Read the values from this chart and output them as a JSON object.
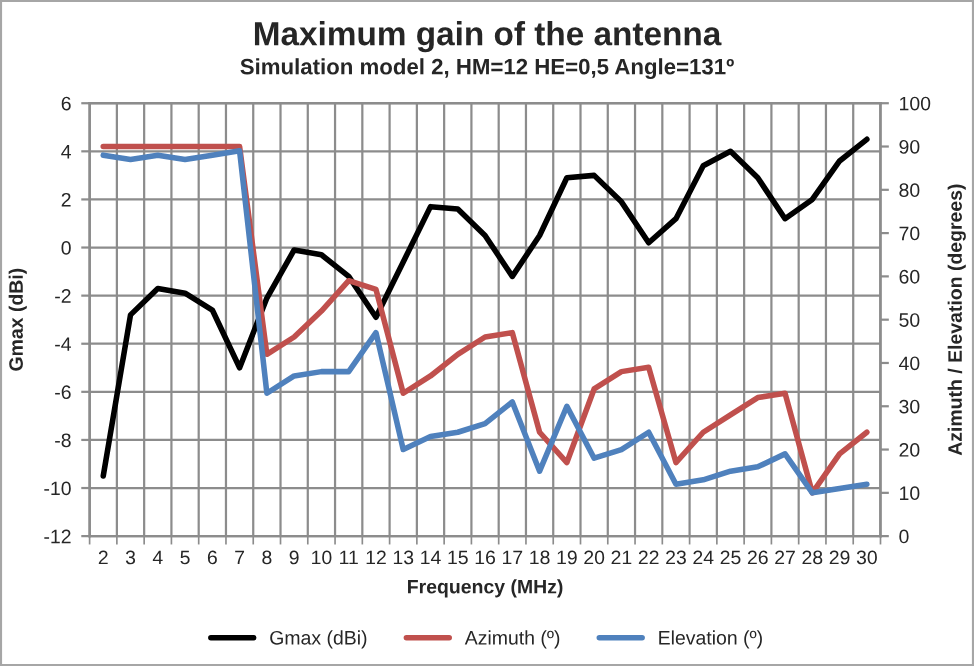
{
  "chart_data": {
    "type": "line",
    "title": "Maximum gain of the antenna",
    "subtitle": "Simulation model 2, HM=12 HE=0,5 Angle=131º",
    "xlabel": "Frequency (MHz)",
    "ylabel": "Gmax (dBi)",
    "y2label": "Azimuth / Elevation (degrees)",
    "categories": [
      "2",
      "3",
      "4",
      "5",
      "6",
      "7",
      "8",
      "9",
      "10",
      "11",
      "12",
      "13",
      "14",
      "15",
      "16",
      "17",
      "18",
      "19",
      "20",
      "21",
      "22",
      "23",
      "24",
      "25",
      "26",
      "27",
      "28",
      "29",
      "30"
    ],
    "series": [
      {
        "name": "Gmax (dBi)",
        "color": "#000000",
        "values": [
          -9.5,
          -2.8,
          -1.7,
          -1.9,
          -2.6,
          -5.0,
          -2.1,
          -0.1,
          -0.3,
          -1.2,
          -2.9,
          -0.6,
          1.7,
          1.6,
          0.5,
          -1.2,
          0.5,
          2.9,
          3.0,
          1.9,
          0.2,
          1.2,
          3.4,
          4.0,
          2.9,
          1.2,
          2.0,
          3.6,
          4.5
        ]
      },
      {
        "name": "Azimuth (º)",
        "color": "#c0504d",
        "axis": "y2",
        "values": [
          90,
          90,
          90,
          90,
          90,
          90,
          42,
          46,
          52,
          59,
          57,
          33,
          37,
          42,
          46,
          47,
          24,
          17,
          34,
          38,
          39,
          17,
          24,
          28,
          32,
          33,
          10,
          19,
          24
        ]
      },
      {
        "name": "Elevation (º)",
        "color": "#4f81bd",
        "axis": "y2",
        "values": [
          88,
          87,
          88,
          87,
          88,
          89,
          33,
          37,
          38,
          38,
          47,
          20,
          23,
          24,
          26,
          31,
          15,
          30,
          18,
          20,
          24,
          12,
          13,
          15,
          16,
          19,
          10,
          11,
          12
        ]
      }
    ],
    "ylim": [
      -12,
      6
    ],
    "yticks": [
      -12,
      -10,
      -8,
      -6,
      -4,
      -2,
      0,
      2,
      4,
      6
    ],
    "y2lim": [
      0,
      100
    ],
    "y2ticks": [
      0,
      10,
      20,
      30,
      40,
      50,
      60,
      70,
      80,
      90,
      100
    ],
    "grid": true,
    "legend": "bottom",
    "line_style": "solid"
  }
}
